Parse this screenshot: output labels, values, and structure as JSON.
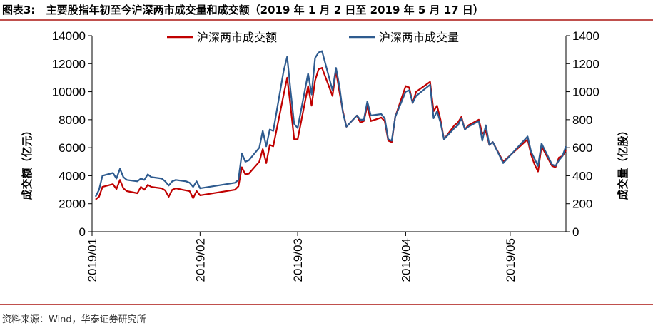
{
  "figure": {
    "label": "图表3:",
    "title": "主要股指年初至今沪深两市成交量和成交额（2019 年 1 月 2 日至 2019 年 5 月 17 日）"
  },
  "source": "资料来源：Wind，华泰证券研究所",
  "colors": {
    "turnover": "#c00000",
    "volume": "#2e5b8f",
    "accent_rule": "#c0504d"
  },
  "chart_data": {
    "type": "line",
    "ylabel_left": "成交额（亿元）",
    "ylabel_right": "成交量（亿股）",
    "ylim_left": [
      0,
      14000
    ],
    "ylim_right": [
      0,
      1400
    ],
    "yticks_left": [
      "0",
      "2000",
      "4000",
      "6000",
      "8000",
      "10000",
      "12000",
      "14000"
    ],
    "yticks_right": [
      "0",
      "200",
      "400",
      "600",
      "800",
      "1000",
      "1200",
      "1400"
    ],
    "x_tick_labels": [
      "2019/01",
      "2019/02",
      "2019/03",
      "2019/04",
      "2019/05"
    ],
    "x_tick_dates": [
      "2019-01-01",
      "2019-02-01",
      "2019-03-01",
      "2019-04-01",
      "2019-05-01"
    ],
    "xlim": [
      "2019-01-01",
      "2019-05-17"
    ],
    "legend_position": "top-center",
    "grid": false,
    "series": [
      {
        "name": "沪深两市成交额",
        "axis": "left",
        "points": [
          [
            "2019-01-02",
            2300
          ],
          [
            "2019-01-03",
            2500
          ],
          [
            "2019-01-04",
            3200
          ],
          [
            "2019-01-07",
            3400
          ],
          [
            "2019-01-08",
            3050
          ],
          [
            "2019-01-09",
            3700
          ],
          [
            "2019-01-10",
            3100
          ],
          [
            "2019-01-11",
            2900
          ],
          [
            "2019-01-14",
            2750
          ],
          [
            "2019-01-15",
            3200
          ],
          [
            "2019-01-16",
            3000
          ],
          [
            "2019-01-17",
            3350
          ],
          [
            "2019-01-18",
            3200
          ],
          [
            "2019-01-21",
            3100
          ],
          [
            "2019-01-22",
            2950
          ],
          [
            "2019-01-23",
            2500
          ],
          [
            "2019-01-24",
            3000
          ],
          [
            "2019-01-25",
            3100
          ],
          [
            "2019-01-28",
            2950
          ],
          [
            "2019-01-29",
            2900
          ],
          [
            "2019-01-30",
            2400
          ],
          [
            "2019-01-31",
            2900
          ],
          [
            "2019-02-01",
            2600
          ],
          [
            "2019-02-11",
            3000
          ],
          [
            "2019-02-12",
            3250
          ],
          [
            "2019-02-13",
            4600
          ],
          [
            "2019-02-14",
            4100
          ],
          [
            "2019-02-15",
            4150
          ],
          [
            "2019-02-18",
            5000
          ],
          [
            "2019-02-19",
            5900
          ],
          [
            "2019-02-20",
            4900
          ],
          [
            "2019-02-21",
            6200
          ],
          [
            "2019-02-22",
            6100
          ],
          [
            "2019-02-25",
            9800
          ],
          [
            "2019-02-26",
            11000
          ],
          [
            "2019-02-27",
            8900
          ],
          [
            "2019-02-28",
            6600
          ],
          [
            "2019-03-01",
            6600
          ],
          [
            "2019-03-04",
            10400
          ],
          [
            "2019-03-05",
            9000
          ],
          [
            "2019-03-06",
            10800
          ],
          [
            "2019-03-07",
            11600
          ],
          [
            "2019-03-08",
            11700
          ],
          [
            "2019-03-11",
            9700
          ],
          [
            "2019-03-12",
            11500
          ],
          [
            "2019-03-13",
            10000
          ],
          [
            "2019-03-14",
            8600
          ],
          [
            "2019-03-15",
            7500
          ],
          [
            "2019-03-18",
            8300
          ],
          [
            "2019-03-19",
            7800
          ],
          [
            "2019-03-20",
            7900
          ],
          [
            "2019-03-21",
            9000
          ],
          [
            "2019-03-22",
            7900
          ],
          [
            "2019-03-25",
            8150
          ],
          [
            "2019-03-26",
            7900
          ],
          [
            "2019-03-27",
            6500
          ],
          [
            "2019-03-28",
            6400
          ],
          [
            "2019-03-29",
            8200
          ],
          [
            "2019-04-01",
            10400
          ],
          [
            "2019-04-02",
            10300
          ],
          [
            "2019-04-03",
            9200
          ],
          [
            "2019-04-04",
            10000
          ],
          [
            "2019-04-08",
            10700
          ],
          [
            "2019-04-09",
            8600
          ],
          [
            "2019-04-10",
            9000
          ],
          [
            "2019-04-11",
            8000
          ],
          [
            "2019-04-12",
            6600
          ],
          [
            "2019-04-15",
            7600
          ],
          [
            "2019-04-16",
            7800
          ],
          [
            "2019-04-17",
            8200
          ],
          [
            "2019-04-18",
            7300
          ],
          [
            "2019-04-19",
            7600
          ],
          [
            "2019-04-22",
            8000
          ],
          [
            "2019-04-23",
            7000
          ],
          [
            "2019-04-24",
            7200
          ],
          [
            "2019-04-25",
            6200
          ],
          [
            "2019-04-26",
            6400
          ],
          [
            "2019-04-29",
            5000
          ],
          [
            "2019-05-06",
            6600
          ],
          [
            "2019-05-07",
            5500
          ],
          [
            "2019-05-08",
            4800
          ],
          [
            "2019-05-09",
            4300
          ],
          [
            "2019-05-10",
            6100
          ],
          [
            "2019-05-13",
            4700
          ],
          [
            "2019-05-14",
            4600
          ],
          [
            "2019-05-15",
            5300
          ],
          [
            "2019-05-16",
            5400
          ],
          [
            "2019-05-17",
            5800
          ]
        ]
      },
      {
        "name": "沪深两市成交量",
        "axis": "right",
        "points": [
          [
            "2019-01-02",
            250
          ],
          [
            "2019-01-03",
            300
          ],
          [
            "2019-01-04",
            400
          ],
          [
            "2019-01-07",
            420
          ],
          [
            "2019-01-08",
            380
          ],
          [
            "2019-01-09",
            450
          ],
          [
            "2019-01-10",
            390
          ],
          [
            "2019-01-11",
            370
          ],
          [
            "2019-01-14",
            360
          ],
          [
            "2019-01-15",
            380
          ],
          [
            "2019-01-16",
            370
          ],
          [
            "2019-01-17",
            410
          ],
          [
            "2019-01-18",
            390
          ],
          [
            "2019-01-21",
            380
          ],
          [
            "2019-01-22",
            360
          ],
          [
            "2019-01-23",
            330
          ],
          [
            "2019-01-24",
            360
          ],
          [
            "2019-01-25",
            370
          ],
          [
            "2019-01-28",
            360
          ],
          [
            "2019-01-29",
            350
          ],
          [
            "2019-01-30",
            320
          ],
          [
            "2019-01-31",
            360
          ],
          [
            "2019-02-01",
            310
          ],
          [
            "2019-02-11",
            350
          ],
          [
            "2019-02-12",
            370
          ],
          [
            "2019-02-13",
            560
          ],
          [
            "2019-02-14",
            500
          ],
          [
            "2019-02-15",
            510
          ],
          [
            "2019-02-18",
            600
          ],
          [
            "2019-02-19",
            720
          ],
          [
            "2019-02-20",
            610
          ],
          [
            "2019-02-21",
            730
          ],
          [
            "2019-02-22",
            720
          ],
          [
            "2019-02-25",
            1150
          ],
          [
            "2019-02-26",
            1250
          ],
          [
            "2019-02-27",
            1000
          ],
          [
            "2019-02-28",
            770
          ],
          [
            "2019-03-01",
            740
          ],
          [
            "2019-03-04",
            1130
          ],
          [
            "2019-03-05",
            980
          ],
          [
            "2019-03-06",
            1240
          ],
          [
            "2019-03-07",
            1280
          ],
          [
            "2019-03-08",
            1290
          ],
          [
            "2019-03-11",
            1010
          ],
          [
            "2019-03-12",
            1170
          ],
          [
            "2019-03-13",
            1040
          ],
          [
            "2019-03-14",
            850
          ],
          [
            "2019-03-15",
            750
          ],
          [
            "2019-03-18",
            830
          ],
          [
            "2019-03-19",
            800
          ],
          [
            "2019-03-20",
            800
          ],
          [
            "2019-03-21",
            930
          ],
          [
            "2019-03-22",
            830
          ],
          [
            "2019-03-25",
            840
          ],
          [
            "2019-03-26",
            810
          ],
          [
            "2019-03-27",
            660
          ],
          [
            "2019-03-28",
            650
          ],
          [
            "2019-03-29",
            820
          ],
          [
            "2019-04-01",
            1000
          ],
          [
            "2019-04-02",
            1010
          ],
          [
            "2019-04-03",
            920
          ],
          [
            "2019-04-04",
            970
          ],
          [
            "2019-04-08",
            1050
          ],
          [
            "2019-04-09",
            810
          ],
          [
            "2019-04-10",
            860
          ],
          [
            "2019-04-11",
            780
          ],
          [
            "2019-04-12",
            660
          ],
          [
            "2019-04-15",
            740
          ],
          [
            "2019-04-16",
            760
          ],
          [
            "2019-04-17",
            810
          ],
          [
            "2019-04-18",
            730
          ],
          [
            "2019-04-19",
            750
          ],
          [
            "2019-04-22",
            790
          ],
          [
            "2019-04-23",
            650
          ],
          [
            "2019-04-24",
            760
          ],
          [
            "2019-04-25",
            620
          ],
          [
            "2019-04-26",
            640
          ],
          [
            "2019-04-29",
            490
          ],
          [
            "2019-05-06",
            680
          ],
          [
            "2019-05-07",
            570
          ],
          [
            "2019-05-08",
            520
          ],
          [
            "2019-05-09",
            470
          ],
          [
            "2019-05-10",
            630
          ],
          [
            "2019-05-13",
            480
          ],
          [
            "2019-05-14",
            470
          ],
          [
            "2019-05-15",
            510
          ],
          [
            "2019-05-16",
            540
          ],
          [
            "2019-05-17",
            610
          ]
        ]
      }
    ]
  }
}
